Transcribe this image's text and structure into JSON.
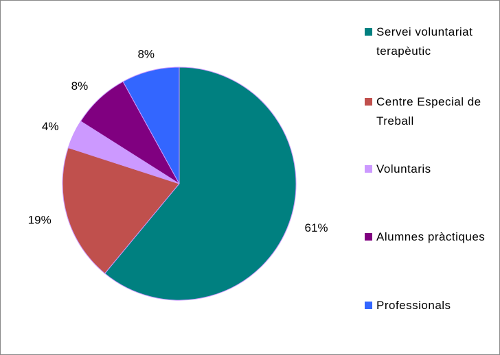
{
  "chart_data": {
    "type": "pie",
    "categories": [
      "Servei voluntariat terapèutic",
      "Centre Especial de Treball",
      "Voluntaris",
      "Alumnes pràctiques",
      "Professionals"
    ],
    "values": [
      61,
      19,
      4,
      8,
      8
    ],
    "value_labels": [
      "61%",
      "19%",
      "4%",
      "8%",
      "8%"
    ],
    "colors": [
      "#008080",
      "#C0504D",
      "#CC99FF",
      "#800080",
      "#3366FF"
    ],
    "legend": "right"
  }
}
